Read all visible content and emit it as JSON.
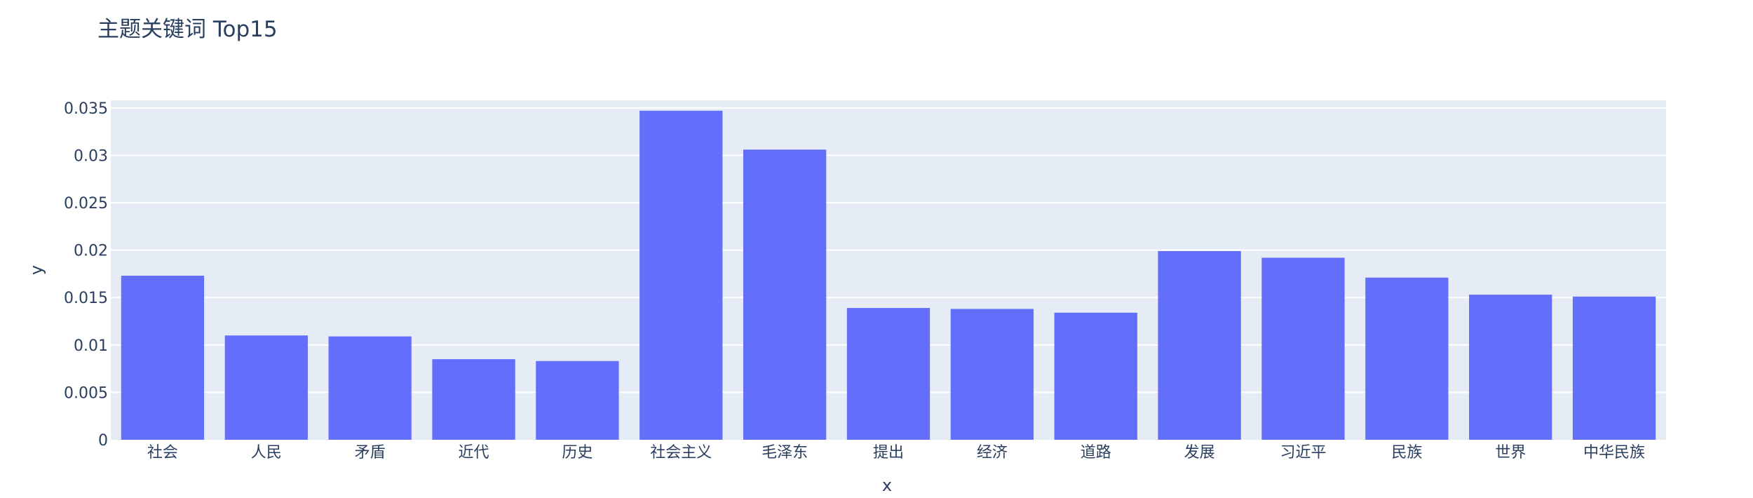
{
  "chart_data": {
    "type": "bar",
    "title": "主题关键词 Top15",
    "xlabel": "x",
    "ylabel": "y",
    "categories": [
      "社会",
      "人民",
      "矛盾",
      "近代",
      "历史",
      "社会主义",
      "毛泽东",
      "提出",
      "经济",
      "道路",
      "发展",
      "习近平",
      "民族",
      "世界",
      "中华民族"
    ],
    "values": [
      0.0173,
      0.011,
      0.0109,
      0.0085,
      0.0083,
      0.0347,
      0.0306,
      0.0139,
      0.0138,
      0.0134,
      0.0199,
      0.0192,
      0.0171,
      0.0153,
      0.0151
    ],
    "ylim": [
      0,
      0.0358
    ],
    "yticks": [
      0,
      0.005,
      0.01,
      0.015,
      0.02,
      0.025,
      0.03,
      0.035
    ],
    "ytick_labels": [
      "0",
      "0.005",
      "0.01",
      "0.015",
      "0.02",
      "0.025",
      "0.03",
      "0.035"
    ],
    "grid": true,
    "colors": {
      "bar": "#636efa",
      "plot_background": "#e5ecf6",
      "gridline": "#ffffff",
      "text": "#2a3f5f"
    }
  }
}
